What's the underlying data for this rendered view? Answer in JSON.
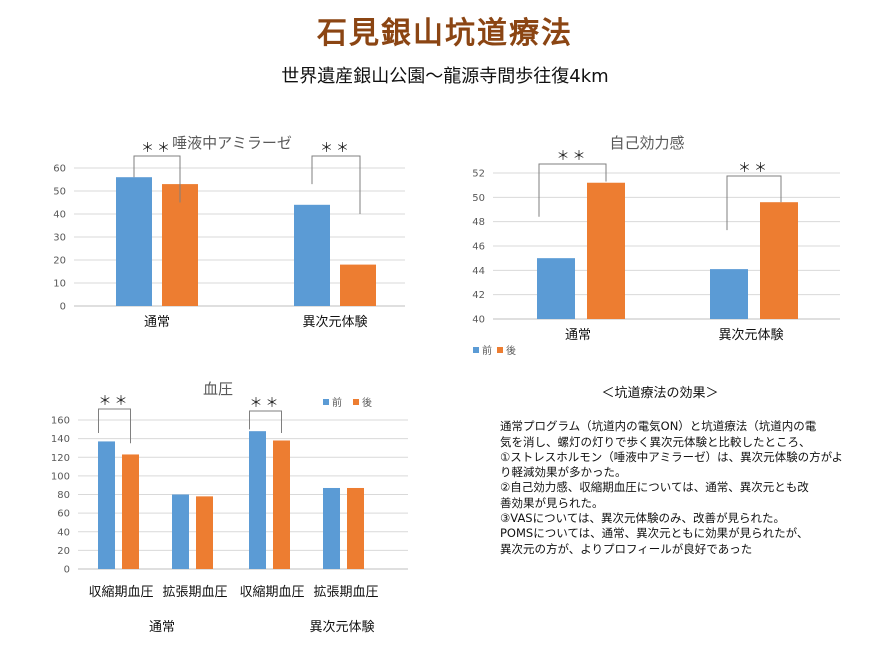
{
  "title": "石見銀山坑道療法",
  "subtitle": "世界遺産銀山公園～龍源寺間歩往復4km",
  "colors": {
    "before": "#5b9bd5",
    "after": "#ed7d31",
    "title": "#8b4513"
  },
  "chart_data": [
    {
      "id": "amylase",
      "type": "bar",
      "title": "唾液中アミラーゼ",
      "categories": [
        "通常",
        "異次元体験"
      ],
      "series": [
        {
          "name": "",
          "values": [
            56,
            44
          ]
        },
        {
          "name": "",
          "values": [
            53,
            18
          ]
        }
      ],
      "ylim": [
        0,
        60
      ],
      "yticks": [
        0,
        10,
        20,
        30,
        40,
        50,
        60
      ],
      "significance": [
        "＊＊",
        "＊＊"
      ],
      "grid": true
    },
    {
      "id": "self_efficacy",
      "type": "bar",
      "title": "自己効力感",
      "categories": [
        "通常",
        "異次元体験"
      ],
      "series": [
        {
          "name": "前",
          "values": [
            45,
            44.1
          ]
        },
        {
          "name": "後",
          "values": [
            51.2,
            49.6
          ]
        }
      ],
      "ylim": [
        40,
        52
      ],
      "yticks": [
        40,
        42,
        44,
        46,
        48,
        50,
        52
      ],
      "significance": [
        "＊＊",
        "＊＊"
      ],
      "legend": "bottom-left",
      "grid": true
    },
    {
      "id": "blood_pressure",
      "type": "bar",
      "title": "血圧",
      "categories": [
        "収縮期血圧",
        "拡張期血圧",
        "収縮期血圧",
        "拡張期血圧"
      ],
      "groups": [
        "通常",
        "異次元体験"
      ],
      "series": [
        {
          "name": "前",
          "values": [
            137,
            80,
            148,
            87
          ]
        },
        {
          "name": "後",
          "values": [
            123,
            78,
            138,
            87
          ]
        }
      ],
      "ylim": [
        0,
        160
      ],
      "yticks": [
        0,
        20,
        40,
        60,
        80,
        100,
        120,
        140,
        160
      ],
      "significance": [
        "＊＊",
        "",
        "＊＊",
        ""
      ],
      "legend": "top-right",
      "grid": true
    }
  ],
  "effects": {
    "heading": "＜坑道療法の効果＞",
    "lines": [
      "通常プログラム（坑道内の電気ON）と坑道療法（坑道内の電",
      "気を消し、螺灯の灯りで歩く異次元体験と比較したところ、",
      "①ストレスホルモン（唾液中アミラーゼ）は、異次元体験の方がよ",
      "り軽減効果が多かった。",
      "②自己効力感、収縮期血圧については、通常、異次元とも改",
      "善効果が見られた。",
      "③VASについては、異次元体験のみ、改善が見られた。",
      "POMSについては、通常、異次元ともに効果が見られたが、",
      "異次元の方が、よりプロフィールが良好であった"
    ]
  }
}
